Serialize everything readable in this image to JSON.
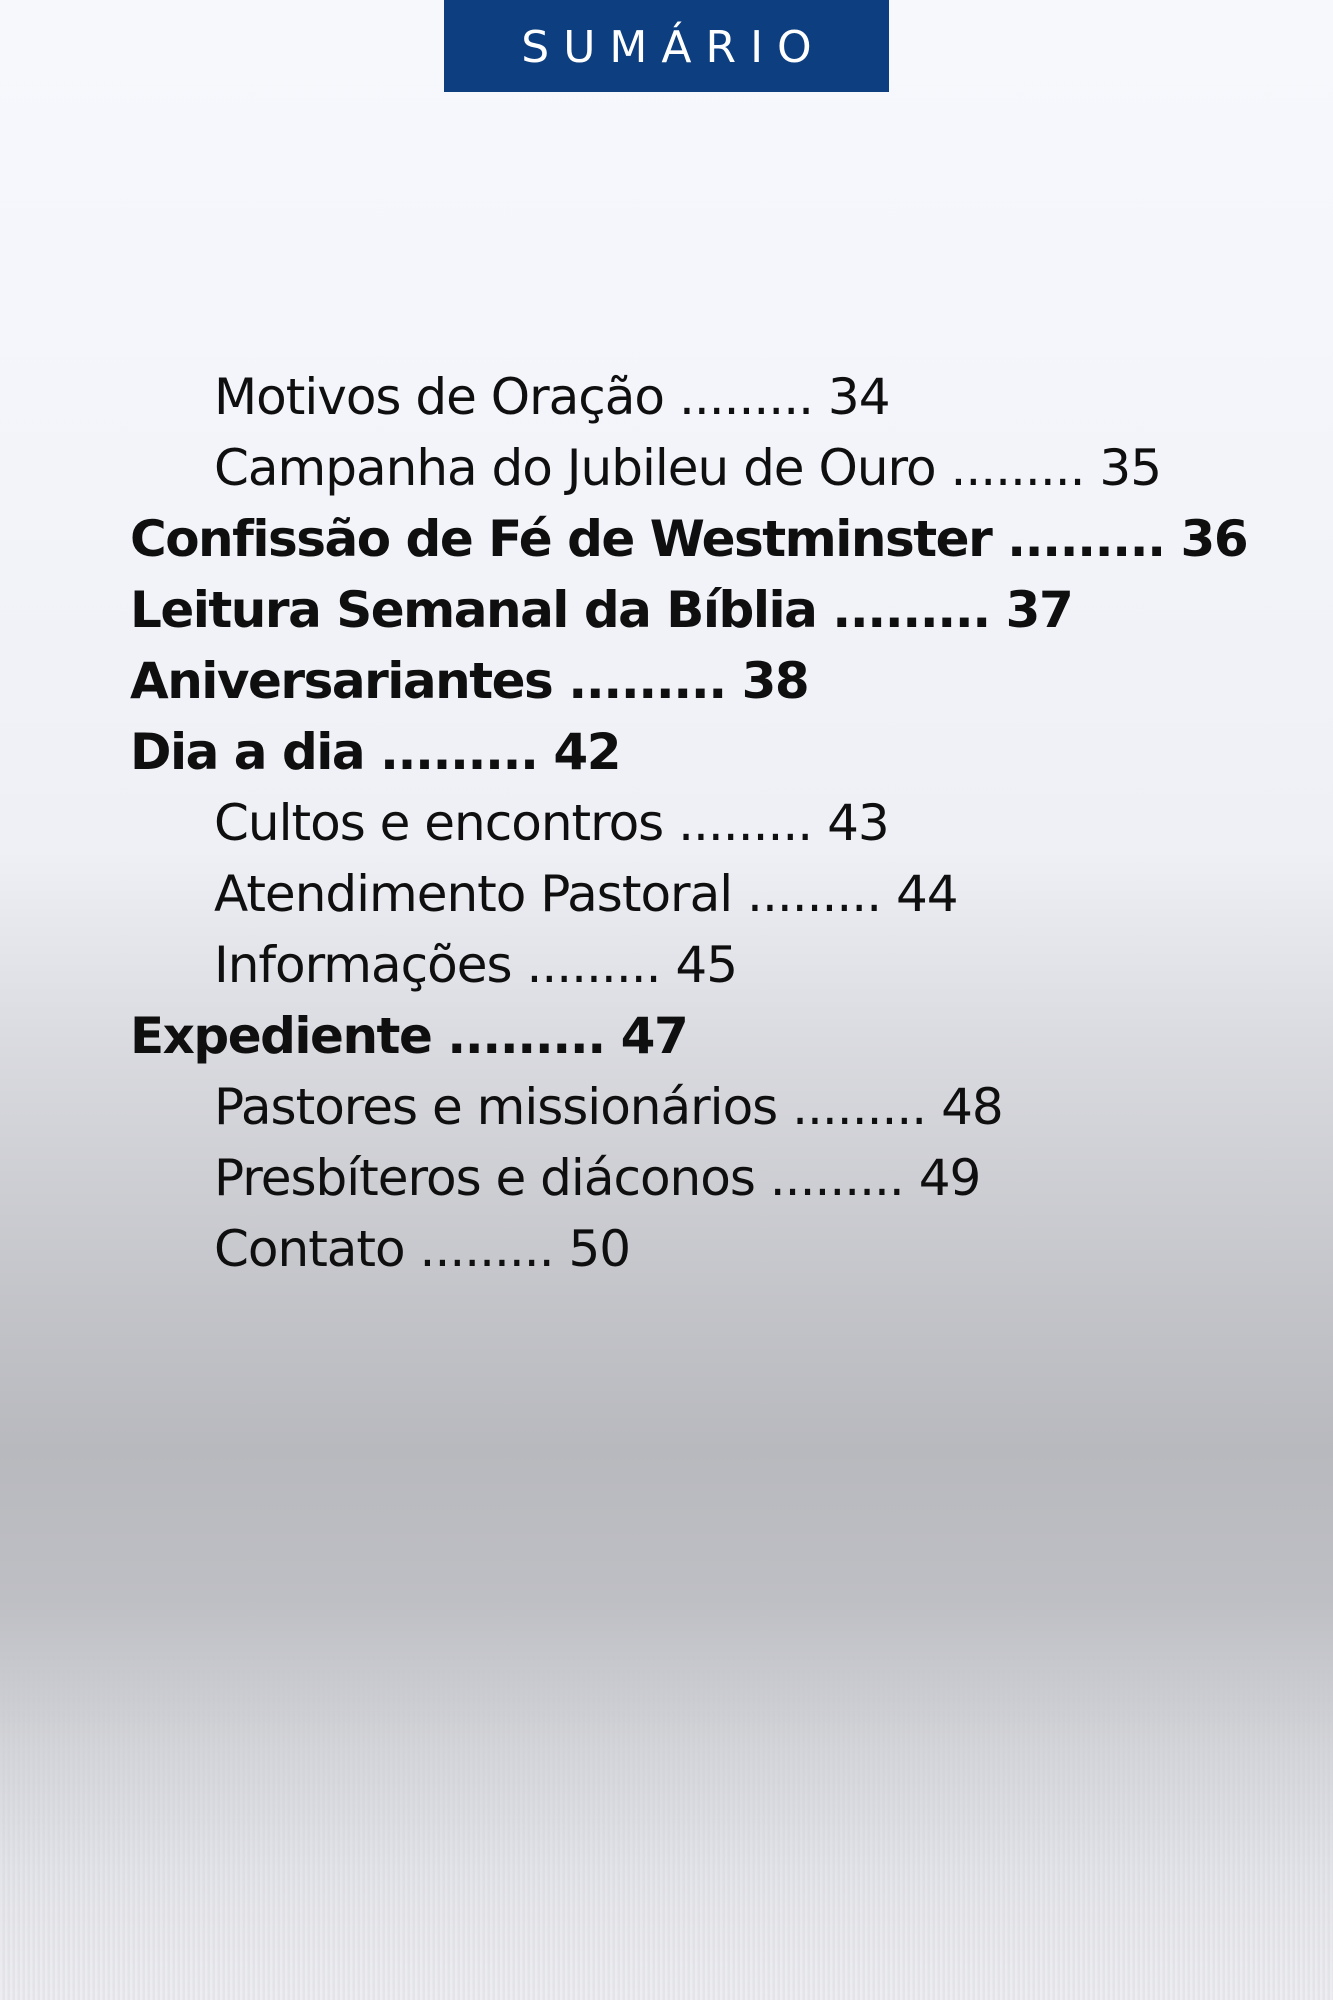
{
  "header": {
    "title": "SUMÁRIO",
    "background_color": "#0c3e80",
    "text_color": "#ffffff"
  },
  "toc": {
    "leader": ".........",
    "items": [
      {
        "title": "Motivos de Oração",
        "page": "34",
        "level": 2
      },
      {
        "title": "Campanha do Jubileu de Ouro",
        "page": "35",
        "level": 2
      },
      {
        "title": "Confissão de Fé de Westminster",
        "page": "36",
        "level": 1
      },
      {
        "title": "Leitura Semanal da Bíblia",
        "page": "37",
        "level": 1
      },
      {
        "title": "Aniversariantes",
        "page": "38",
        "level": 1
      },
      {
        "title": "Dia a dia",
        "page": "42",
        "level": 1
      },
      {
        "title": "Cultos e encontros",
        "page": "43",
        "level": 2
      },
      {
        "title": "Atendimento Pastoral",
        "page": "44",
        "level": 2
      },
      {
        "title": "Informações",
        "page": "45",
        "level": 2
      },
      {
        "title": "Expediente",
        "page": "47",
        "level": 1
      },
      {
        "title": "Pastores e missionários",
        "page": "48",
        "level": 2
      },
      {
        "title": "Presbíteros e diáconos",
        "page": "49",
        "level": 2
      },
      {
        "title": "Contato",
        "page": "50",
        "level": 2
      }
    ]
  }
}
